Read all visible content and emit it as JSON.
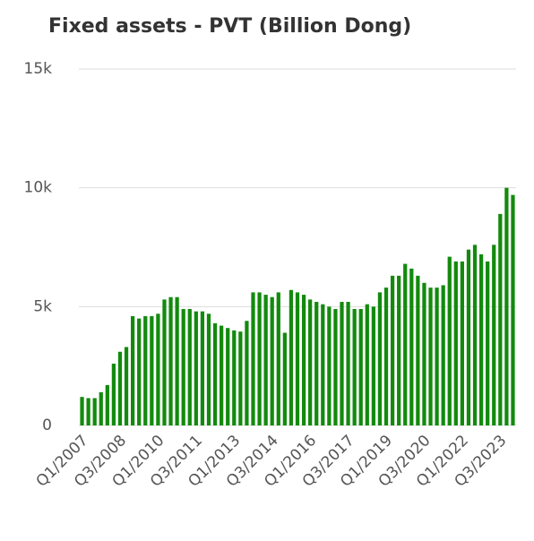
{
  "chart_data": {
    "type": "bar",
    "title": "Fixed assets - PVT (Billion Dong)",
    "categories": [
      "Q1/2007",
      null,
      null,
      null,
      null,
      null,
      "Q3/2008",
      null,
      null,
      null,
      null,
      null,
      "Q1/2010",
      null,
      null,
      null,
      null,
      null,
      "Q3/2011",
      null,
      null,
      null,
      null,
      null,
      "Q1/2013",
      null,
      null,
      null,
      null,
      null,
      "Q3/2014",
      null,
      null,
      null,
      null,
      null,
      "Q1/2016",
      null,
      null,
      null,
      null,
      null,
      "Q3/2017",
      null,
      null,
      null,
      null,
      null,
      "Q1/2019",
      null,
      null,
      null,
      null,
      null,
      "Q3/2020",
      null,
      null,
      null,
      null,
      null,
      "Q1/2022",
      null,
      null,
      null,
      null,
      null,
      "Q3/2023",
      null,
      null
    ],
    "values": [
      1200,
      1150,
      1150,
      1400,
      1700,
      2600,
      3100,
      3300,
      4600,
      4500,
      4600,
      4600,
      4700,
      5300,
      5400,
      5400,
      4900,
      4900,
      4800,
      4800,
      4700,
      4300,
      4200,
      4100,
      4000,
      3950,
      4400,
      5600,
      5600,
      5500,
      5400,
      5600,
      3900,
      5700,
      5600,
      5500,
      5300,
      5200,
      5100,
      5000,
      4900,
      5200,
      5200,
      4900,
      4900,
      5100,
      5000,
      5600,
      5800,
      6300,
      6300,
      6800,
      6600,
      6300,
      6000,
      5800,
      5800,
      5900,
      7100,
      6900,
      6900,
      7400,
      7600,
      7200,
      6900,
      7600,
      8900,
      10000,
      9700
    ],
    "color": "#138a0e",
    "ylim": [
      0,
      15000
    ],
    "yticks": [
      0,
      {
        "value": 5000,
        "label": "5k"
      },
      {
        "value": 10000,
        "label": "10k"
      },
      {
        "value": 15000,
        "label": "15k"
      }
    ],
    "grid": true
  }
}
